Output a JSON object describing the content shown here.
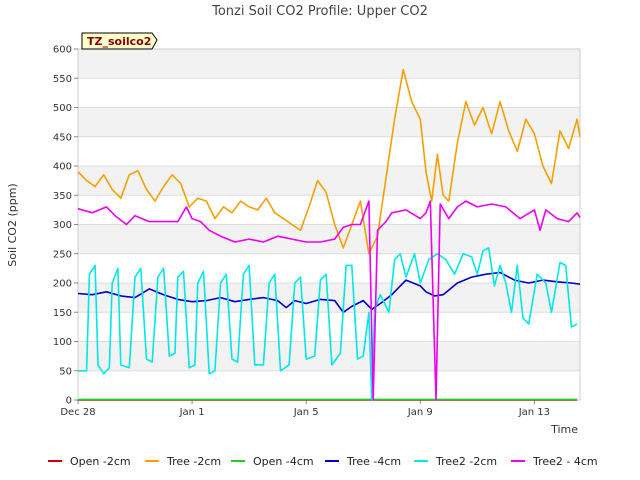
{
  "chart_data": {
    "type": "line",
    "title": "Tonzi Soil CO2 Profile: Upper CO2",
    "badge": "TZ_soilco2",
    "ylabel": "Soil CO2 (ppm)",
    "xlabel": "Time",
    "ylim": [
      0,
      600
    ],
    "yticks": [
      0,
      50,
      100,
      150,
      200,
      250,
      300,
      350,
      400,
      450,
      500,
      550,
      600
    ],
    "xlim": [
      0,
      17.6
    ],
    "xticks": [
      {
        "label": "Dec 28",
        "x": 0
      },
      {
        "label": "Jan 1",
        "x": 4
      },
      {
        "label": "Jan 5",
        "x": 8
      },
      {
        "label": "Jan 9",
        "x": 12
      },
      {
        "label": "Jan 13",
        "x": 16
      }
    ],
    "grid": true,
    "legend_position": "bottom",
    "series": [
      {
        "name": "Open -2cm",
        "color": "#cc0000",
        "points": [
          [
            0,
            0
          ],
          [
            17.5,
            0
          ]
        ]
      },
      {
        "name": "Tree -2cm",
        "color": "#f5a000",
        "points": [
          [
            0,
            390
          ],
          [
            0.3,
            375
          ],
          [
            0.6,
            365
          ],
          [
            0.9,
            385
          ],
          [
            1.2,
            360
          ],
          [
            1.5,
            345
          ],
          [
            1.8,
            385
          ],
          [
            2.1,
            392
          ],
          [
            2.4,
            360
          ],
          [
            2.7,
            340
          ],
          [
            3.0,
            365
          ],
          [
            3.3,
            385
          ],
          [
            3.6,
            370
          ],
          [
            3.9,
            330
          ],
          [
            4.2,
            345
          ],
          [
            4.5,
            340
          ],
          [
            4.8,
            310
          ],
          [
            5.1,
            330
          ],
          [
            5.4,
            320
          ],
          [
            5.7,
            340
          ],
          [
            6.0,
            330
          ],
          [
            6.3,
            325
          ],
          [
            6.6,
            345
          ],
          [
            6.9,
            320
          ],
          [
            7.2,
            310
          ],
          [
            7.5,
            300
          ],
          [
            7.8,
            290
          ],
          [
            8.1,
            330
          ],
          [
            8.4,
            375
          ],
          [
            8.7,
            355
          ],
          [
            9.0,
            300
          ],
          [
            9.3,
            260
          ],
          [
            9.6,
            300
          ],
          [
            9.9,
            340
          ],
          [
            10.2,
            250
          ],
          [
            10.5,
            280
          ],
          [
            10.8,
            380
          ],
          [
            11.1,
            480
          ],
          [
            11.4,
            565
          ],
          [
            11.7,
            510
          ],
          [
            12.0,
            480
          ],
          [
            12.2,
            390
          ],
          [
            12.4,
            340
          ],
          [
            12.6,
            420
          ],
          [
            12.8,
            350
          ],
          [
            13.0,
            340
          ],
          [
            13.3,
            440
          ],
          [
            13.6,
            510
          ],
          [
            13.9,
            470
          ],
          [
            14.2,
            500
          ],
          [
            14.5,
            455
          ],
          [
            14.8,
            510
          ],
          [
            15.1,
            460
          ],
          [
            15.4,
            425
          ],
          [
            15.7,
            480
          ],
          [
            16.0,
            455
          ],
          [
            16.3,
            400
          ],
          [
            16.6,
            370
          ],
          [
            16.9,
            460
          ],
          [
            17.2,
            430
          ],
          [
            17.5,
            480
          ],
          [
            17.6,
            450
          ]
        ]
      },
      {
        "name": "Open -4cm",
        "color": "#22cc22",
        "points": [
          [
            0,
            1
          ],
          [
            17.5,
            1
          ]
        ]
      },
      {
        "name": "Tree -4cm",
        "color": "#0000cc",
        "points": [
          [
            0,
            182
          ],
          [
            0.5,
            180
          ],
          [
            1.0,
            185
          ],
          [
            1.5,
            178
          ],
          [
            2.0,
            175
          ],
          [
            2.5,
            190
          ],
          [
            3.0,
            180
          ],
          [
            3.5,
            172
          ],
          [
            4.0,
            168
          ],
          [
            4.5,
            170
          ],
          [
            5.0,
            175
          ],
          [
            5.5,
            168
          ],
          [
            6.0,
            172
          ],
          [
            6.5,
            175
          ],
          [
            7.0,
            170
          ],
          [
            7.3,
            158
          ],
          [
            7.6,
            170
          ],
          [
            8.0,
            165
          ],
          [
            8.5,
            172
          ],
          [
            9.0,
            170
          ],
          [
            9.3,
            150
          ],
          [
            9.6,
            160
          ],
          [
            10.0,
            170
          ],
          [
            10.3,
            155
          ],
          [
            10.6,
            165
          ],
          [
            11.0,
            180
          ],
          [
            11.5,
            205
          ],
          [
            12.0,
            195
          ],
          [
            12.2,
            185
          ],
          [
            12.5,
            178
          ],
          [
            12.8,
            180
          ],
          [
            13.3,
            200
          ],
          [
            13.8,
            210
          ],
          [
            14.3,
            215
          ],
          [
            14.8,
            218
          ],
          [
            15.3,
            205
          ],
          [
            15.8,
            200
          ],
          [
            16.3,
            205
          ],
          [
            16.8,
            202
          ],
          [
            17.3,
            200
          ],
          [
            17.6,
            198
          ]
        ]
      },
      {
        "name": "Tree2 -2cm",
        "color": "#00e8e8",
        "points": [
          [
            0,
            50
          ],
          [
            0.3,
            50
          ],
          [
            0.4,
            215
          ],
          [
            0.6,
            230
          ],
          [
            0.7,
            60
          ],
          [
            0.9,
            45
          ],
          [
            1.1,
            55
          ],
          [
            1.2,
            200
          ],
          [
            1.4,
            225
          ],
          [
            1.5,
            60
          ],
          [
            1.8,
            55
          ],
          [
            2.0,
            210
          ],
          [
            2.2,
            225
          ],
          [
            2.4,
            70
          ],
          [
            2.6,
            65
          ],
          [
            2.8,
            210
          ],
          [
            3.0,
            225
          ],
          [
            3.2,
            75
          ],
          [
            3.4,
            80
          ],
          [
            3.5,
            210
          ],
          [
            3.7,
            220
          ],
          [
            3.9,
            55
          ],
          [
            4.1,
            60
          ],
          [
            4.2,
            200
          ],
          [
            4.4,
            220
          ],
          [
            4.6,
            45
          ],
          [
            4.8,
            50
          ],
          [
            5.0,
            200
          ],
          [
            5.2,
            215
          ],
          [
            5.4,
            70
          ],
          [
            5.6,
            65
          ],
          [
            5.8,
            215
          ],
          [
            6.0,
            230
          ],
          [
            6.2,
            60
          ],
          [
            6.5,
            60
          ],
          [
            6.7,
            200
          ],
          [
            6.9,
            215
          ],
          [
            7.1,
            50
          ],
          [
            7.4,
            60
          ],
          [
            7.6,
            200
          ],
          [
            7.8,
            210
          ],
          [
            8.0,
            70
          ],
          [
            8.3,
            75
          ],
          [
            8.5,
            205
          ],
          [
            8.7,
            215
          ],
          [
            8.9,
            60
          ],
          [
            9.2,
            80
          ],
          [
            9.4,
            230
          ],
          [
            9.6,
            230
          ],
          [
            9.8,
            70
          ],
          [
            10.0,
            75
          ],
          [
            10.2,
            150
          ],
          [
            10.3,
            0
          ],
          [
            10.4,
            155
          ],
          [
            10.6,
            180
          ],
          [
            10.9,
            150
          ],
          [
            11.1,
            240
          ],
          [
            11.3,
            250
          ],
          [
            11.5,
            210
          ],
          [
            11.8,
            250
          ],
          [
            12.0,
            200
          ],
          [
            12.3,
            240
          ],
          [
            12.6,
            250
          ],
          [
            12.9,
            240
          ],
          [
            13.2,
            215
          ],
          [
            13.5,
            250
          ],
          [
            13.8,
            245
          ],
          [
            14.0,
            215
          ],
          [
            14.2,
            255
          ],
          [
            14.4,
            260
          ],
          [
            14.6,
            195
          ],
          [
            14.8,
            230
          ],
          [
            15.0,
            200
          ],
          [
            15.2,
            150
          ],
          [
            15.4,
            230
          ],
          [
            15.6,
            140
          ],
          [
            15.8,
            130
          ],
          [
            16.1,
            215
          ],
          [
            16.4,
            200
          ],
          [
            16.6,
            150
          ],
          [
            16.9,
            235
          ],
          [
            17.1,
            230
          ],
          [
            17.3,
            125
          ],
          [
            17.5,
            130
          ]
        ]
      },
      {
        "name": "Tree2 - 4cm",
        "color": "#ee00ee",
        "points": [
          [
            0,
            327
          ],
          [
            0.5,
            320
          ],
          [
            1.0,
            330
          ],
          [
            1.3,
            315
          ],
          [
            1.7,
            300
          ],
          [
            2.0,
            315
          ],
          [
            2.5,
            305
          ],
          [
            3.0,
            305
          ],
          [
            3.5,
            305
          ],
          [
            3.8,
            330
          ],
          [
            4.0,
            310
          ],
          [
            4.3,
            305
          ],
          [
            4.6,
            290
          ],
          [
            5.0,
            280
          ],
          [
            5.5,
            270
          ],
          [
            6.0,
            275
          ],
          [
            6.5,
            270
          ],
          [
            7.0,
            280
          ],
          [
            7.5,
            275
          ],
          [
            8.0,
            270
          ],
          [
            8.5,
            270
          ],
          [
            9.0,
            275
          ],
          [
            9.3,
            295
          ],
          [
            9.6,
            300
          ],
          [
            9.9,
            300
          ],
          [
            10.2,
            340
          ],
          [
            10.35,
            0
          ],
          [
            10.5,
            290
          ],
          [
            10.8,
            305
          ],
          [
            11.0,
            320
          ],
          [
            11.5,
            325
          ],
          [
            12.0,
            310
          ],
          [
            12.2,
            320
          ],
          [
            12.35,
            340
          ],
          [
            12.55,
            0
          ],
          [
            12.7,
            335
          ],
          [
            13.0,
            310
          ],
          [
            13.3,
            330
          ],
          [
            13.6,
            340
          ],
          [
            14.0,
            330
          ],
          [
            14.5,
            335
          ],
          [
            15.0,
            330
          ],
          [
            15.5,
            310
          ],
          [
            16.0,
            325
          ],
          [
            16.2,
            290
          ],
          [
            16.4,
            325
          ],
          [
            16.8,
            310
          ],
          [
            17.2,
            305
          ],
          [
            17.5,
            320
          ],
          [
            17.6,
            312
          ]
        ]
      }
    ]
  }
}
